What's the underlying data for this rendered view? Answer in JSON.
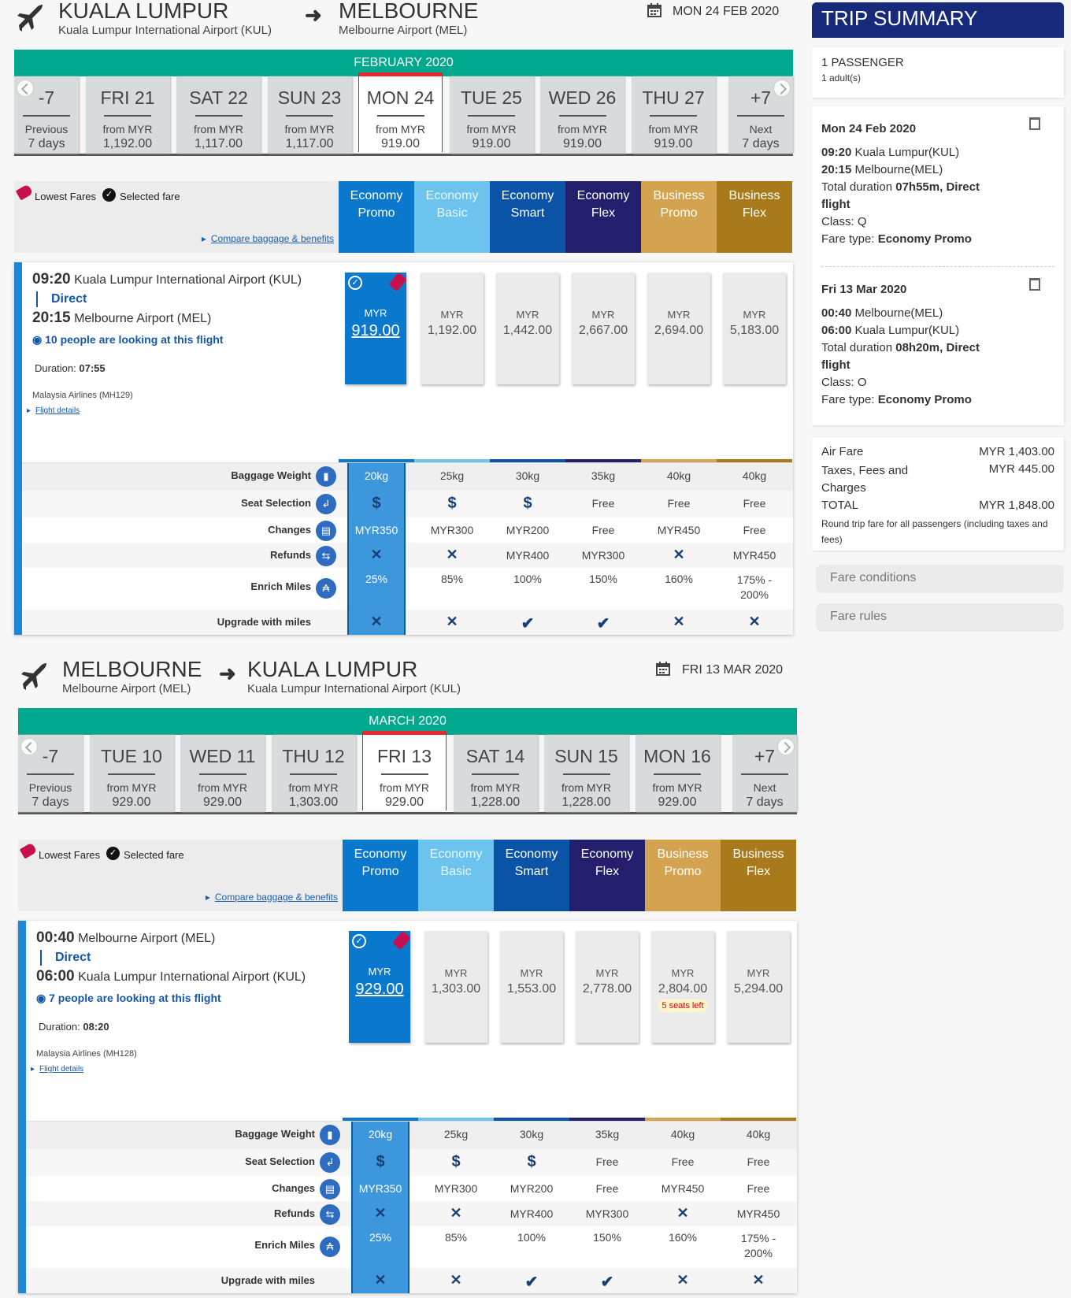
{
  "fare_columns": [
    {
      "label": "Economy Promo",
      "color": "#0a78cd"
    },
    {
      "label": "Economy Basic",
      "color": "#6cc4ee"
    },
    {
      "label": "Economy Smart",
      "color": "#0a53a7"
    },
    {
      "label": "Economy Flex",
      "color": "#241f6c"
    },
    {
      "label": "Business Promo",
      "color": "#d4a34f"
    },
    {
      "label": "Business Flex",
      "color": "#a87a1b"
    }
  ],
  "legend": {
    "lowest": "Lowest Fares",
    "selected": "Selected fare",
    "compare": "Compare baggage & benefits"
  },
  "benefits": [
    {
      "label": "Baggage Weight",
      "icon": "luggage-icon",
      "values": [
        "20kg",
        "25kg",
        "30kg",
        "35kg",
        "40kg",
        "40kg"
      ]
    },
    {
      "label": "Seat Selection",
      "icon": "seat-icon",
      "values": [
        "$",
        "$",
        "$",
        "Free",
        "Free",
        "Free"
      ]
    },
    {
      "label": "Changes",
      "icon": "calendar-change-icon",
      "values": [
        "MYR350",
        "MYR300",
        "MYR200",
        "Free",
        "MYR450",
        "Free"
      ]
    },
    {
      "label": "Refunds",
      "icon": "refund-arrows-icon",
      "values": [
        "x",
        "x",
        "MYR400",
        "MYR300",
        "x",
        "MYR450"
      ]
    },
    {
      "label": "Enrich Miles",
      "icon": "enrich-icon",
      "values": [
        "25%",
        "85%",
        "100%",
        "150%",
        "160%",
        "175% - 200%"
      ]
    },
    {
      "label": "Upgrade with miles",
      "icon": "",
      "values": [
        "x",
        "x",
        "check",
        "check",
        "x",
        "x"
      ]
    }
  ],
  "segments": [
    {
      "from_city": "KUALA LUMPUR",
      "from_airport": "Kuala Lumpur International Airport (KUL)",
      "to_city": "MELBOURNE",
      "to_airport": "Melbourne Airport (MEL)",
      "date": "MON 24 FEB 2020",
      "month": "FEBRUARY 2020",
      "prev": {
        "day": "-7",
        "label": "Previous",
        "sub": "7 days"
      },
      "next": {
        "day": "+7",
        "label": "Next",
        "sub": "7 days"
      },
      "tabs": [
        {
          "day": "FRI 21",
          "from": "from MYR",
          "price": "1,192.00"
        },
        {
          "day": "SAT 22",
          "from": "from MYR",
          "price": "1,117.00"
        },
        {
          "day": "SUN 23",
          "from": "from MYR",
          "price": "1,117.00"
        },
        {
          "day": "MON 24",
          "from": "from MYR",
          "price": "919.00",
          "selected": true
        },
        {
          "day": "TUE 25",
          "from": "from MYR",
          "price": "919.00"
        },
        {
          "day": "WED 26",
          "from": "from MYR",
          "price": "919.00"
        },
        {
          "day": "THU 27",
          "from": "from MYR",
          "price": "919.00"
        }
      ],
      "flight": {
        "dep_time": "09:20",
        "dep_airport": "Kuala Lumpur International Airport (KUL)",
        "direct": "Direct",
        "arr_time": "20:15",
        "arr_airport": "Melbourne Airport (MEL)",
        "looking": "10 people are looking at this flight",
        "duration_label": "Duration:",
        "duration": "07:55",
        "airline": "Malaysia Airlines (MH129)",
        "details": "Flight details"
      },
      "currency": "MYR",
      "prices": [
        "919.00",
        "1,192.00",
        "1,442.00",
        "2,667.00",
        "2,694.00",
        "5,183.00"
      ],
      "seats_left": [
        "",
        "",
        "",
        "",
        "",
        ""
      ]
    },
    {
      "from_city": "MELBOURNE",
      "from_airport": "Melbourne Airport (MEL)",
      "to_city": "KUALA LUMPUR",
      "to_airport": "Kuala Lumpur International Airport (KUL)",
      "date": "FRI 13 MAR 2020",
      "month": "MARCH 2020",
      "prev": {
        "day": "-7",
        "label": "Previous",
        "sub": "7 days"
      },
      "next": {
        "day": "+7",
        "label": "Next",
        "sub": "7 days"
      },
      "tabs": [
        {
          "day": "TUE 10",
          "from": "from MYR",
          "price": "929.00"
        },
        {
          "day": "WED 11",
          "from": "from MYR",
          "price": "929.00"
        },
        {
          "day": "THU 12",
          "from": "from MYR",
          "price": "1,303.00"
        },
        {
          "day": "FRI 13",
          "from": "from MYR",
          "price": "929.00",
          "selected": true
        },
        {
          "day": "SAT 14",
          "from": "from MYR",
          "price": "1,228.00"
        },
        {
          "day": "SUN 15",
          "from": "from MYR",
          "price": "1,228.00"
        },
        {
          "day": "MON 16",
          "from": "from MYR",
          "price": "929.00"
        }
      ],
      "flight": {
        "dep_time": "00:40",
        "dep_airport": "Melbourne Airport (MEL)",
        "direct": "Direct",
        "arr_time": "06:00",
        "arr_airport": "Kuala Lumpur International Airport (KUL)",
        "looking": "7 people are looking at this flight",
        "duration_label": "Duration:",
        "duration": "08:20",
        "airline": "Malaysia Airlines (MH128)",
        "details": "Flight details"
      },
      "currency": "MYR",
      "prices": [
        "929.00",
        "1,303.00",
        "1,553.00",
        "2,778.00",
        "2,804.00",
        "5,294.00"
      ],
      "seats_left": [
        "",
        "",
        "",
        "",
        "5 seats left",
        ""
      ]
    }
  ],
  "summary": {
    "title": "TRIP SUMMARY",
    "passengers": "1 PASSENGER",
    "adults": "1 adult(s)",
    "legs": [
      {
        "date": "Mon 24 Feb 2020",
        "dep_time": "09:20",
        "dep": "Kuala Lumpur(KUL)",
        "arr_time": "20:15",
        "arr": "Melbourne(MEL)",
        "duration_label": "Total duration",
        "duration": "07h55m, Direct flight",
        "class": "Class: Q",
        "fare_label": "Fare type:",
        "fare": "Economy Promo"
      },
      {
        "date": "Fri 13 Mar 2020",
        "dep_time": "00:40",
        "dep": "Melbourne(MEL)",
        "arr_time": "06:00",
        "arr": "Kuala Lumpur(KUL)",
        "duration_label": "Total duration",
        "duration": "08h20m, Direct flight",
        "class": "Class: O",
        "fare_label": "Fare type:",
        "fare": "Economy Promo"
      }
    ],
    "air_fare_label": "Air Fare",
    "air_fare": "MYR 1,403.00",
    "taxes_label": "Taxes, Fees and Charges",
    "taxes": "MYR 445.00",
    "total_label": "TOTAL",
    "total": "MYR 1,848.00",
    "note": "Round trip fare for all passengers (including taxes and fees)",
    "fare_conditions": "Fare conditions",
    "fare_rules": "Fare rules"
  }
}
